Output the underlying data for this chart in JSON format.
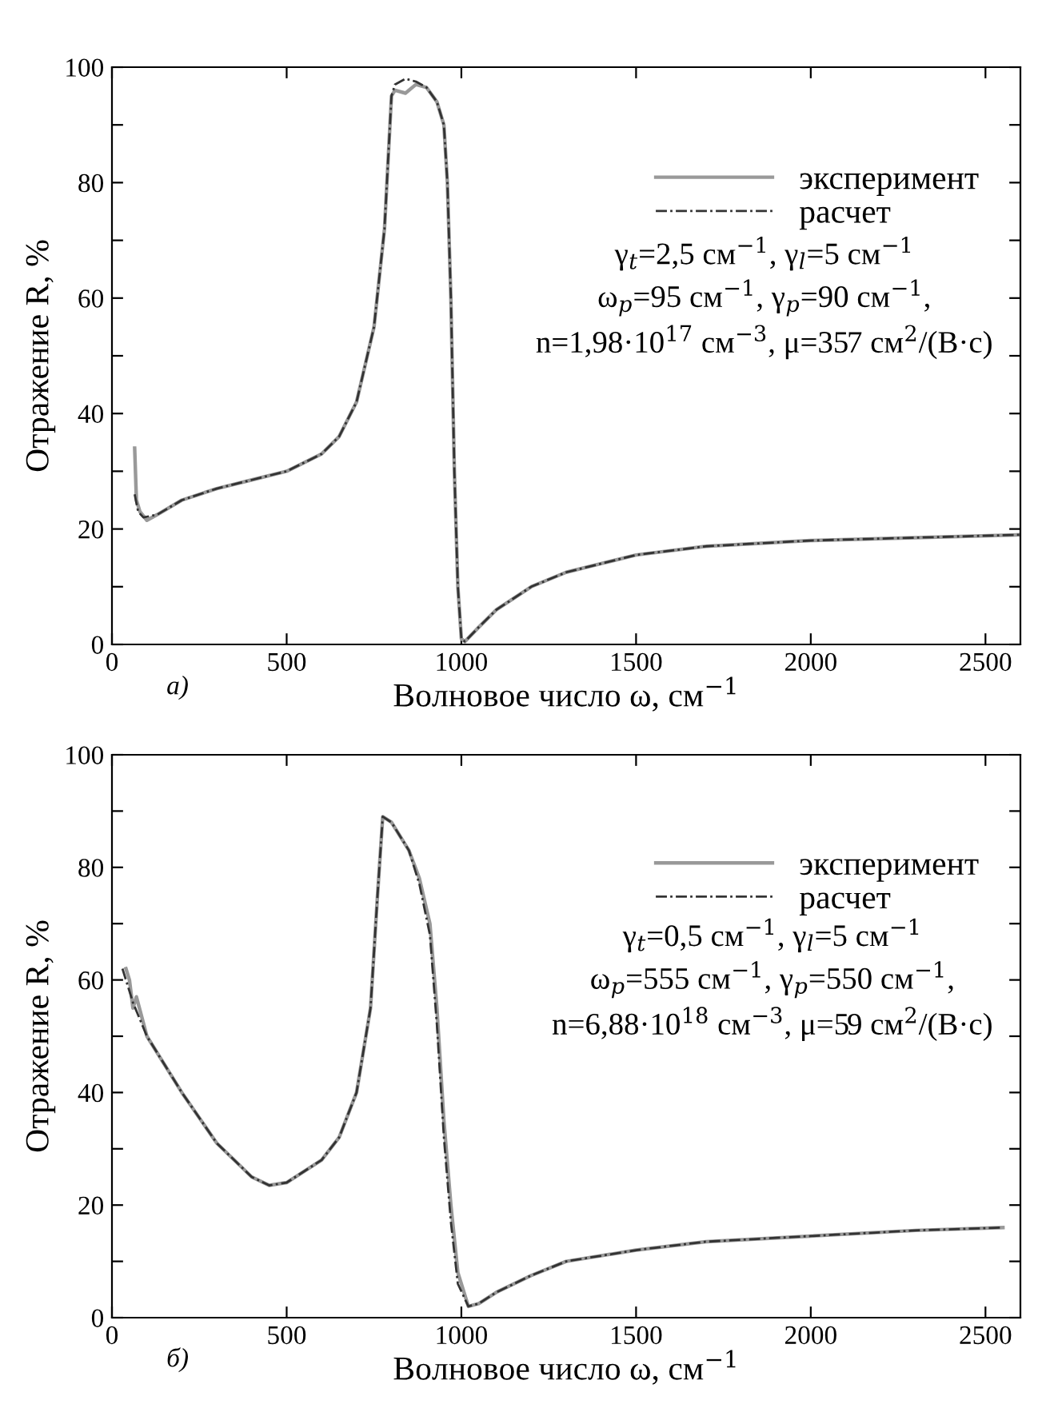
{
  "chart_data": [
    {
      "type": "line",
      "xlabel": "Волновое число ω, см$^{−1}$",
      "ylabel": "Отражение R, %",
      "xlim": [
        0,
        2600
      ],
      "ylim": [
        0,
        100
      ],
      "xticks": [
        0,
        500,
        1000,
        1500,
        2000,
        2500
      ],
      "yticks": [
        0,
        {
          "value": 10,
          "label": null
        },
        20,
        {
          "value": 30,
          "label": null
        },
        40,
        {
          "value": 50,
          "label": null
        },
        60,
        {
          "value": 70,
          "label": null
        },
        80,
        {
          "value": 90,
          "label": null
        },
        100
      ],
      "grid": false,
      "legend": "top right",
      "annotations": [
        "γ$_{t}$=2,5 см$^{−1}$, γ$_{l}$=5 см$^{−1}$\nω$_{p}$=95 см$^{−1}$, γ$_{p}$=90 см$^{−1}$,\nn=1,98·10$^{17}$ см$^{−3}$, μ=357 см$^{2}$/(В·с)",
        "а)"
      ],
      "series": [
        {
          "name": "эксперимент",
          "color": "#999999",
          "line_style": "solid",
          "x": [
            65,
            70,
            80,
            100,
            130,
            200,
            300,
            400,
            500,
            600,
            650,
            700,
            750,
            780,
            800,
            810,
            840,
            870,
            900,
            930,
            950,
            960,
            970,
            980,
            990,
            1000,
            1010,
            1050,
            1100,
            1200,
            1300,
            1400,
            1500,
            1700,
            2000,
            2300,
            2600
          ],
          "values": [
            34,
            25,
            23,
            21.5,
            22.5,
            25,
            27,
            28.5,
            30,
            33,
            36,
            42,
            55,
            72,
            95,
            96,
            95.5,
            97,
            96.5,
            94,
            90,
            80,
            60,
            30,
            10,
            1,
            0.5,
            3,
            6,
            10,
            12.5,
            14,
            15.5,
            17,
            18,
            18.5,
            19
          ]
        },
        {
          "name": "расчет",
          "color": "#333333",
          "line_style": "dashed",
          "x": [
            65,
            75,
            90,
            130,
            200,
            300,
            400,
            500,
            600,
            650,
            700,
            750,
            780,
            800,
            810,
            840,
            870,
            900,
            930,
            950,
            960,
            970,
            980,
            990,
            1000,
            1010,
            1050,
            1100,
            1200,
            1300,
            1400,
            1500,
            1700,
            2000,
            2300,
            2600
          ],
          "values": [
            26,
            23,
            22,
            22.5,
            25,
            27,
            28.5,
            30,
            33,
            36,
            42,
            55,
            72,
            95,
            97,
            98,
            97.5,
            96.5,
            94,
            90,
            80,
            60,
            30,
            10,
            1,
            0.5,
            3,
            6,
            10,
            12.5,
            14,
            15.5,
            17,
            18,
            18.5,
            19
          ]
        }
      ]
    },
    {
      "type": "line",
      "xlabel": "Волновое число ω, см$^{−1}$",
      "ylabel": "Отражение R, %",
      "xlim": [
        0,
        2600
      ],
      "ylim": [
        0,
        100
      ],
      "xticks": [
        0,
        500,
        1000,
        1500,
        2000,
        2500
      ],
      "yticks": [
        0,
        {
          "value": 10,
          "label": null
        },
        20,
        {
          "value": 30,
          "label": null
        },
        40,
        {
          "value": 50,
          "label": null
        },
        60,
        {
          "value": 70,
          "label": null
        },
        80,
        {
          "value": 90,
          "label": null
        },
        100
      ],
      "grid": false,
      "legend": "top right",
      "annotations": [
        "γ$_{t}$=0,5 см$^{−1}$, γ$_{l}$=5 см$^{−1}$\nω$_{p}$=555 см$^{−1}$, γ$_{p}$=550 см$^{−1}$,\nn=6,88·10$^{18}$ см$^{−3}$, μ=59 см$^{2}$/(В·с)",
        "б)"
      ],
      "series": [
        {
          "name": "эксперимент",
          "color": "#999999",
          "line_style": "solid",
          "x": [
            40,
            50,
            60,
            70,
            100,
            200,
            300,
            400,
            450,
            500,
            600,
            650,
            700,
            740,
            760,
            775,
            800,
            850,
            880,
            910,
            930,
            950,
            970,
            990,
            1020,
            1050,
            1100,
            1200,
            1300,
            1500,
            1700,
            2000,
            2300,
            2550
          ],
          "values": [
            62,
            60,
            55,
            57,
            50,
            40,
            31,
            25,
            23.5,
            24,
            28,
            32,
            40,
            55,
            75,
            89,
            88,
            83,
            78,
            70,
            55,
            35,
            20,
            8,
            2,
            2.5,
            4.5,
            7.5,
            10,
            12,
            13.5,
            14.5,
            15.5,
            16
          ]
        },
        {
          "name": "расчет",
          "color": "#333333",
          "line_style": "dashed",
          "x": [
            30,
            60,
            100,
            200,
            300,
            400,
            450,
            500,
            600,
            650,
            700,
            740,
            760,
            775,
            800,
            850,
            880,
            910,
            930,
            950,
            970,
            990,
            1020,
            1050,
            1100,
            1200,
            1300,
            1500,
            1700,
            2000,
            2300,
            2550
          ],
          "values": [
            62,
            56,
            50,
            40,
            31,
            25,
            23.5,
            24,
            28,
            32,
            40,
            55,
            75,
            89,
            88,
            83,
            77,
            68,
            52,
            32,
            17,
            6,
            2,
            2.5,
            4.5,
            7.5,
            10,
            12,
            13.5,
            14.5,
            15.5,
            16
          ]
        }
      ]
    }
  ]
}
